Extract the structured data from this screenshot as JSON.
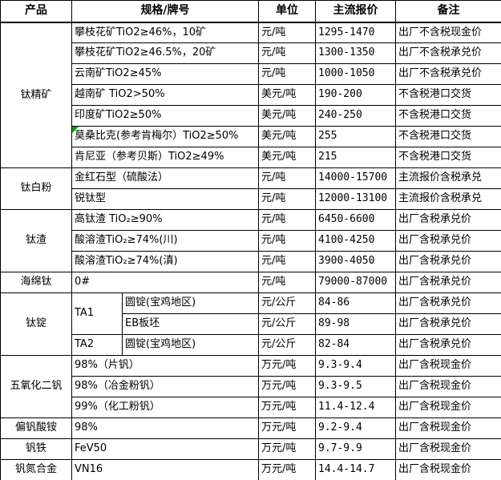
{
  "colors": {
    "background": "#ffffff",
    "text": "#000000",
    "border": "#000000",
    "flag_triangle": "#00a000"
  },
  "table": {
    "headers": {
      "product": "产品",
      "spec": "规格/牌号",
      "unit": "单位",
      "price": "主流报价",
      "note": "备注"
    },
    "groups": [
      {
        "product": "钛精矿",
        "rows": [
          {
            "spec": "攀枝花矿TiO2≥46%，10矿",
            "unit": "元/吨",
            "price": "1295-1470",
            "note": "出厂不含税现金价"
          },
          {
            "spec": "攀枝花矿TiO2≥46.5%，20矿",
            "unit": "元/吨",
            "price": "1300-1350",
            "note": "出厂不含税承兑价"
          },
          {
            "spec": "云南矿TiO2≥45%",
            "unit": "元/吨",
            "price": "1000-1050",
            "note": "出厂不含税承兑价"
          },
          {
            "spec": "越南矿 TiO2>50%",
            "unit": "美元/吨",
            "price": "190-200",
            "note": "不含税港口交货"
          },
          {
            "spec": "印度矿TiO2≥50%",
            "unit": "美元/吨",
            "price": "240-250",
            "note": "不含税港口交货"
          },
          {
            "spec": "莫桑比克(参考肯梅尔）TiO2≥50%",
            "unit": "美元/吨",
            "price": "255",
            "note": "不含税港口交货",
            "flag": true
          },
          {
            "spec": "肯尼亚（参考贝斯）TiO2≥49%",
            "unit": "美元/吨",
            "price": "215",
            "note": "不含税港口交货"
          }
        ]
      },
      {
        "product": "钛白粉",
        "rows": [
          {
            "spec": "金红石型（硫酸法）",
            "unit": "元/吨",
            "price": "14000-15700",
            "note": "主流报价含税承兑"
          },
          {
            "spec": "锐钛型",
            "unit": "元/吨",
            "price": "12000-13100",
            "note": "主流报价含税承兑"
          }
        ]
      },
      {
        "product": "钛渣",
        "rows": [
          {
            "spec": "高钛渣 TiO₂≥90%",
            "unit": "元/吨",
            "price": "6450-6600",
            "note": "出厂含税承兑价"
          },
          {
            "spec": "酸溶渣TiO₂≥74%(川)",
            "unit": "元/吨",
            "price": "4100-4250",
            "note": "出厂含税承兑价"
          },
          {
            "spec": "酸溶渣TiO₂≥74%(滇)",
            "unit": "元/吨",
            "price": "3900-4050",
            "note": "出厂含税承兑价"
          }
        ]
      },
      {
        "product": "海绵钛",
        "rows": [
          {
            "spec": "0#",
            "unit": "元/吨",
            "price": "79000-87000",
            "note": "出厂含税承兑价"
          }
        ]
      },
      {
        "product": "钛锭",
        "rows": [
          {
            "grade": "TA1",
            "spec": "圆锭(宝鸡地区)",
            "unit": "元/公斤",
            "price": "84-86",
            "note": "出厂含税承兑价"
          },
          {
            "spec": "EB板坯",
            "unit": "元/公斤",
            "price": "89-98",
            "note": "出厂含税承兑价"
          },
          {
            "grade": "TA2",
            "spec": "圆锭(宝鸡地区)",
            "unit": "元/公斤",
            "price": "82-84",
            "note": "出厂含税承兑价"
          }
        ]
      },
      {
        "product": "五氧化二钒",
        "rows": [
          {
            "spec": "98%（片钒）",
            "unit": "万元/吨",
            "price": "9.3-9.4",
            "note": "出厂含税现金价"
          },
          {
            "spec": "98%（冶金粉钒）",
            "unit": "万元/吨",
            "price": "9.3-9.5",
            "note": "出厂含税现金价"
          },
          {
            "spec": "99%（化工粉钒）",
            "unit": "万元/吨",
            "price": "11.4-12.4",
            "note": "出厂含税现金价"
          }
        ]
      },
      {
        "product": "偏钒酸铵",
        "rows": [
          {
            "spec": "98%",
            "unit": "万元/吨",
            "price": "9.2-9.4",
            "note": "出厂含税现金价"
          }
        ]
      },
      {
        "product": "钒铁",
        "rows": [
          {
            "spec": "FeV50",
            "unit": "万元/吨",
            "price": "9.7-9.9",
            "note": "出厂含税现金价"
          }
        ]
      },
      {
        "product": "钒氮合金",
        "rows": [
          {
            "spec": "VN16",
            "unit": "万元/吨",
            "price": "14.4-14.7",
            "note": "出厂含税现金价"
          }
        ]
      }
    ]
  }
}
